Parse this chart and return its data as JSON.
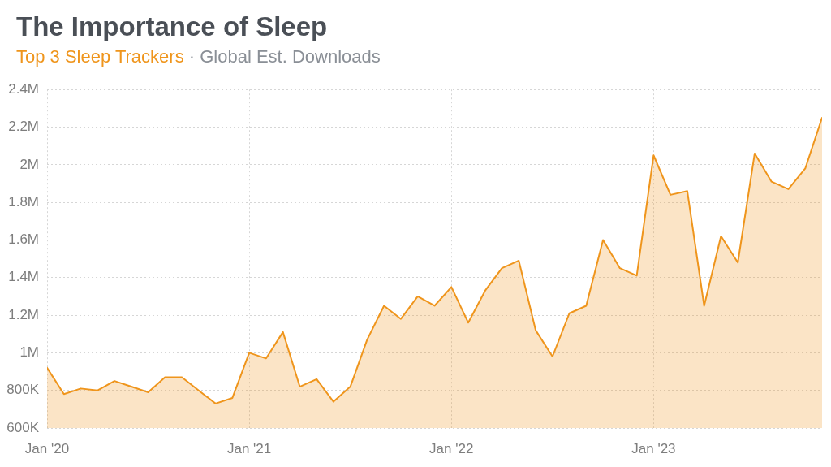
{
  "chart_data": {
    "type": "area",
    "title": "The Importance of Sleep",
    "subtitle": "Top 3 Sleep Trackers · Global Est. Downloads",
    "x": [
      "2020-01",
      "2020-02",
      "2020-03",
      "2020-04",
      "2020-05",
      "2020-06",
      "2020-07",
      "2020-08",
      "2020-09",
      "2020-10",
      "2020-11",
      "2020-12",
      "2021-01",
      "2021-02",
      "2021-03",
      "2021-04",
      "2021-05",
      "2021-06",
      "2021-07",
      "2021-08",
      "2021-09",
      "2021-10",
      "2021-11",
      "2021-12",
      "2022-01",
      "2022-02",
      "2022-03",
      "2022-04",
      "2022-05",
      "2022-06",
      "2022-07",
      "2022-08",
      "2022-09",
      "2022-10",
      "2022-11",
      "2022-12",
      "2023-01",
      "2023-02",
      "2023-03",
      "2023-04",
      "2023-05",
      "2023-06",
      "2023-07",
      "2023-08",
      "2023-09",
      "2023-10",
      "2023-11"
    ],
    "series": [
      {
        "color": "#ef951c",
        "values": [
          920000,
          780000,
          810000,
          800000,
          850000,
          820000,
          790000,
          870000,
          870000,
          800000,
          730000,
          760000,
          1000000,
          970000,
          1110000,
          820000,
          860000,
          740000,
          820000,
          1070000,
          1250000,
          1180000,
          1300000,
          1250000,
          1350000,
          1160000,
          1330000,
          1450000,
          1490000,
          1120000,
          980000,
          1210000,
          1250000,
          1600000,
          1450000,
          1410000,
          2050000,
          1840000,
          1860000,
          1250000,
          1620000,
          1480000,
          2060000,
          1910000,
          1870000,
          1980000,
          2250000
        ]
      }
    ],
    "xlim": [
      "2020-01",
      "2023-11"
    ],
    "xticks": [
      {
        "value": "2020-01",
        "label": "Jan '20"
      },
      {
        "value": "2021-01",
        "label": "Jan '21"
      },
      {
        "value": "2022-01",
        "label": "Jan '22"
      },
      {
        "value": "2023-01",
        "label": "Jan '23"
      }
    ],
    "ylim": [
      600000,
      2400000
    ],
    "yticks": [
      {
        "value": 600000,
        "label": "600K"
      },
      {
        "value": 800000,
        "label": "800K"
      },
      {
        "value": 1000000,
        "label": "1M"
      },
      {
        "value": 1200000,
        "label": "1.2M"
      },
      {
        "value": 1400000,
        "label": "1.4M"
      },
      {
        "value": 1600000,
        "label": "1.6M"
      },
      {
        "value": 1800000,
        "label": "1.8M"
      },
      {
        "value": 2000000,
        "label": "2M"
      },
      {
        "value": 2200000,
        "label": "2.2M"
      },
      {
        "value": 2400000,
        "label": "2.4M"
      }
    ],
    "grid": true
  }
}
